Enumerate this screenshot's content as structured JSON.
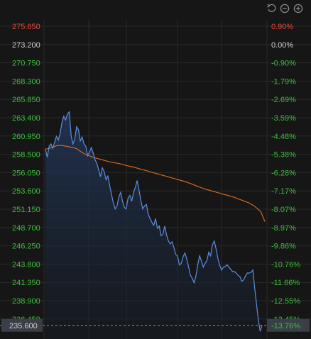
{
  "toolbar": {
    "icons": [
      "undo-icon",
      "zoom-out-icon",
      "zoom-in-icon"
    ]
  },
  "colors": {
    "background": "#161616",
    "grid": "#2a2a2a",
    "price_line": "#5b8fe0",
    "avg_line": "#d2691e",
    "up_label": "#e84a3a",
    "neutral_label": "#cfcfcf",
    "down_label": "#3bbf3b",
    "current_box": "#3a3f47"
  },
  "chart_data": {
    "type": "line",
    "reference_price": 273.2,
    "current_price": "235.600",
    "current_pct": "-13.76%",
    "left_ticks": [
      "275.650",
      "273.200",
      "270.750",
      "268.300",
      "265.850",
      "263.400",
      "260.950",
      "258.500",
      "256.050",
      "253.600",
      "251.150",
      "248.700",
      "246.250",
      "243.800",
      "241.350",
      "238.900",
      "236.450"
    ],
    "right_ticks": [
      "0.90%",
      "0.00%",
      "-0.90%",
      "-1.79%",
      "-2.69%",
      "-3.59%",
      "-4.48%",
      "-5.38%",
      "-6.28%",
      "-7.17%",
      "-8.07%",
      "-8.97%",
      "-9.86%",
      "-10.76%",
      "-11.66%",
      "-12.55%",
      "-13.45%"
    ],
    "ylim": [
      234.5,
      277.0
    ],
    "series": [
      {
        "values": [
          259.2,
          258.1,
          259.6,
          259.9,
          259.3,
          260.1,
          260.9,
          260.4,
          261.3,
          262.8,
          263.6,
          263.1,
          263.9,
          264.2,
          261.0,
          259.9,
          260.6,
          262.2,
          261.8,
          260.3,
          260.8,
          259.9,
          259.6,
          258.3,
          258.8,
          259.4,
          258.7,
          257.8,
          257.3,
          256.4,
          255.5,
          256.7,
          256.2,
          255.1,
          255.6,
          254.3,
          253.1,
          252.0,
          251.2,
          251.6,
          252.8,
          253.4,
          252.2,
          251.4,
          251.2,
          252.6,
          253.0,
          252.2,
          253.4,
          254.1,
          255.0,
          253.7,
          252.3,
          251.2,
          251.6,
          251.8,
          250.5,
          249.9,
          249.4,
          249.0,
          249.9,
          248.6,
          248.9,
          247.6,
          247.8,
          248.9,
          247.7,
          246.9,
          246.5,
          246.8,
          246.0,
          245.1,
          244.9,
          243.7,
          243.9,
          244.8,
          245.3,
          244.5,
          243.4,
          242.3,
          241.9,
          241.3,
          242.2,
          243.7,
          244.9,
          244.2,
          243.4,
          243.9,
          244.3,
          245.4,
          244.9,
          246.4,
          246.9,
          245.8,
          244.5,
          243.6,
          243.0,
          243.4,
          243.5,
          243.7,
          243.4,
          243.1,
          242.8,
          242.8,
          242.6,
          242.3,
          242.1,
          241.5,
          241.7,
          242.2,
          242.6,
          242.6,
          242.7,
          243.0,
          240.6,
          238.5,
          236.4,
          234.8,
          235.6
        ],
        "color_key": "price_line"
      },
      {
        "values": [
          259.2,
          259.3,
          259.5,
          259.7,
          259.7,
          259.6,
          259.5,
          259.4,
          259.2,
          258.8,
          258.5,
          258.3,
          258.1,
          257.95,
          257.8,
          257.65,
          257.5,
          257.4,
          257.3,
          257.2,
          257.05,
          256.9,
          256.8,
          256.65,
          256.5,
          256.35,
          256.2,
          256.05,
          255.9,
          255.75,
          255.6,
          255.45,
          255.3,
          255.15,
          255.0,
          254.85,
          254.65,
          254.45,
          254.25,
          254.05,
          253.85,
          253.7,
          253.55,
          253.4,
          253.25,
          253.1,
          252.95,
          252.8,
          252.6,
          252.4,
          252.2,
          252.0,
          251.7,
          251.3,
          250.8,
          249.5
        ],
        "color_key": "avg_line"
      }
    ]
  }
}
